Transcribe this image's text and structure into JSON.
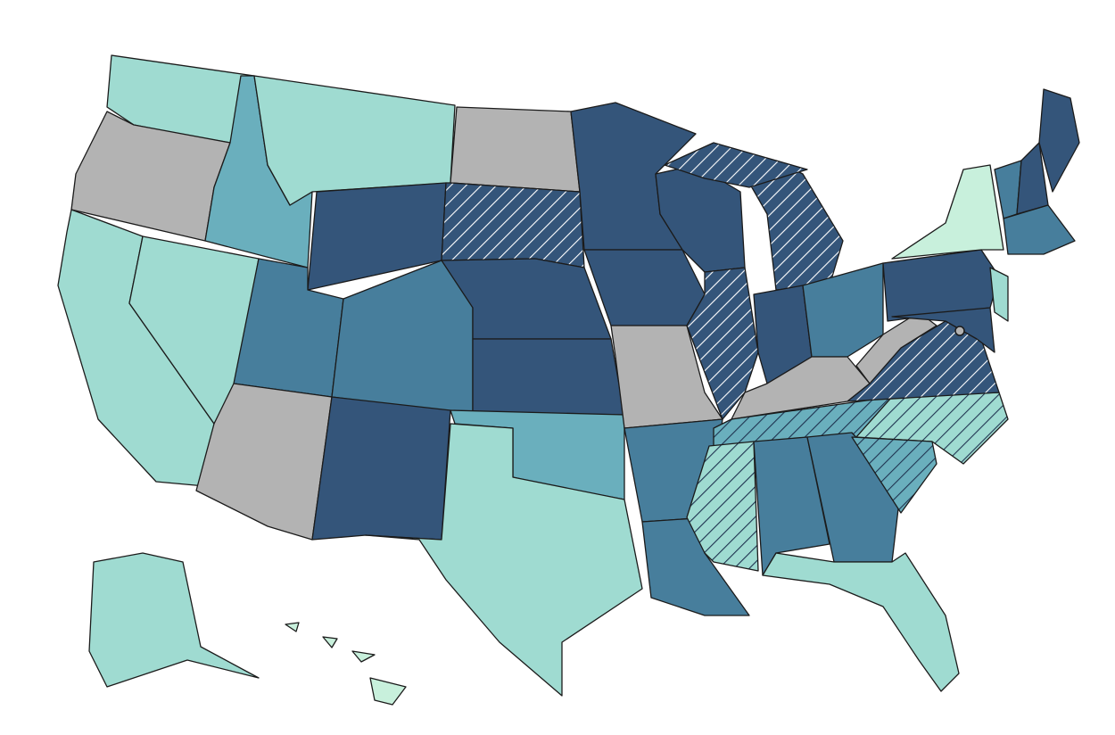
{
  "map": {
    "palette": [
      "#34557a",
      "#477e9c",
      "#6aafbd",
      "#9fdbd1",
      "#c8f0dc",
      "#b3b3b3"
    ],
    "hatch_on_dark": "#ffffff",
    "hatch_on_light": "#1f3350"
  }
}
